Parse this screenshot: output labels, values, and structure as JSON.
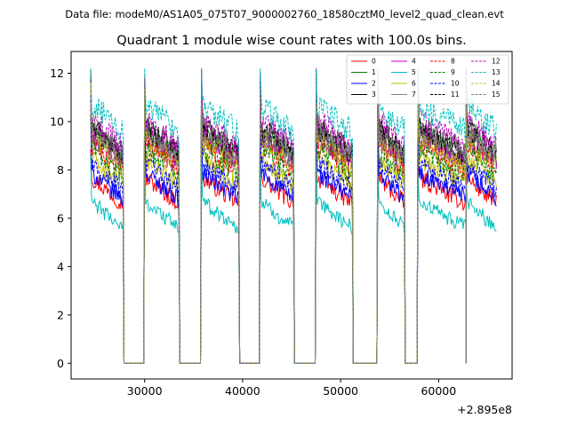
{
  "header": {
    "data_file": "Data file: modeM0/AS1A05_075T07_9000002760_18580cztM0_level2_quad_clean.evt"
  },
  "chart_data": {
    "type": "line",
    "title": "Quadrant 1 module wise count rates with 100.0s bins.",
    "xlabel": "",
    "ylabel": "",
    "x_offset_label": "+2.895e8",
    "xlim": [
      22500,
      67500
    ],
    "ylim": [
      -0.65,
      12.9
    ],
    "x_ticks": [
      30000,
      40000,
      50000,
      60000
    ],
    "x_tick_labels": [
      "30000",
      "40000",
      "50000",
      "60000"
    ],
    "y_ticks": [
      0,
      2,
      4,
      6,
      8,
      10,
      12
    ],
    "y_tick_labels": [
      "0",
      "2",
      "4",
      "6",
      "8",
      "10",
      "12"
    ],
    "grid": false,
    "legend_position": "top-right",
    "active_segments": [
      [
        24500,
        27800
      ],
      [
        30000,
        33500
      ],
      [
        35800,
        39600
      ],
      [
        41800,
        45200
      ],
      [
        47500,
        51200
      ],
      [
        53800,
        56500
      ],
      [
        57900,
        62800
      ],
      [
        62800,
        65900
      ]
    ],
    "gap_floor": 0,
    "series": [
      {
        "name": "0",
        "color": "#ff0000",
        "dash": "solid",
        "level": 6.6
      },
      {
        "name": "1",
        "color": "#008000",
        "dash": "solid",
        "level": 8.6
      },
      {
        "name": "2",
        "color": "#0000ff",
        "dash": "solid",
        "level": 6.8
      },
      {
        "name": "3",
        "color": "#000000",
        "dash": "solid",
        "level": 8.5
      },
      {
        "name": "4",
        "color": "#bf00bf",
        "dash": "solid",
        "level": 8.3
      },
      {
        "name": "5",
        "color": "#00bfbf",
        "dash": "solid",
        "level": 5.6
      },
      {
        "name": "6",
        "color": "#bfbf00",
        "dash": "solid",
        "level": 7.4
      },
      {
        "name": "7",
        "color": "#808080",
        "dash": "solid",
        "level": 8.8
      },
      {
        "name": "8",
        "color": "#ff0000",
        "dash": "dashed",
        "level": 8.0
      },
      {
        "name": "9",
        "color": "#008000",
        "dash": "dashed",
        "level": 7.8
      },
      {
        "name": "10",
        "color": "#0000ff",
        "dash": "dashed",
        "level": 7.2
      },
      {
        "name": "11",
        "color": "#000000",
        "dash": "dashed",
        "level": 8.7
      },
      {
        "name": "12",
        "color": "#bf00bf",
        "dash": "dashed",
        "level": 9.0
      },
      {
        "name": "13",
        "color": "#00bfbf",
        "dash": "dashed",
        "level": 9.6
      },
      {
        "name": "14",
        "color": "#bfbf00",
        "dash": "dashed",
        "level": 8.2
      },
      {
        "name": "15",
        "color": "#808080",
        "dash": "dashed",
        "level": 8.4
      }
    ]
  }
}
